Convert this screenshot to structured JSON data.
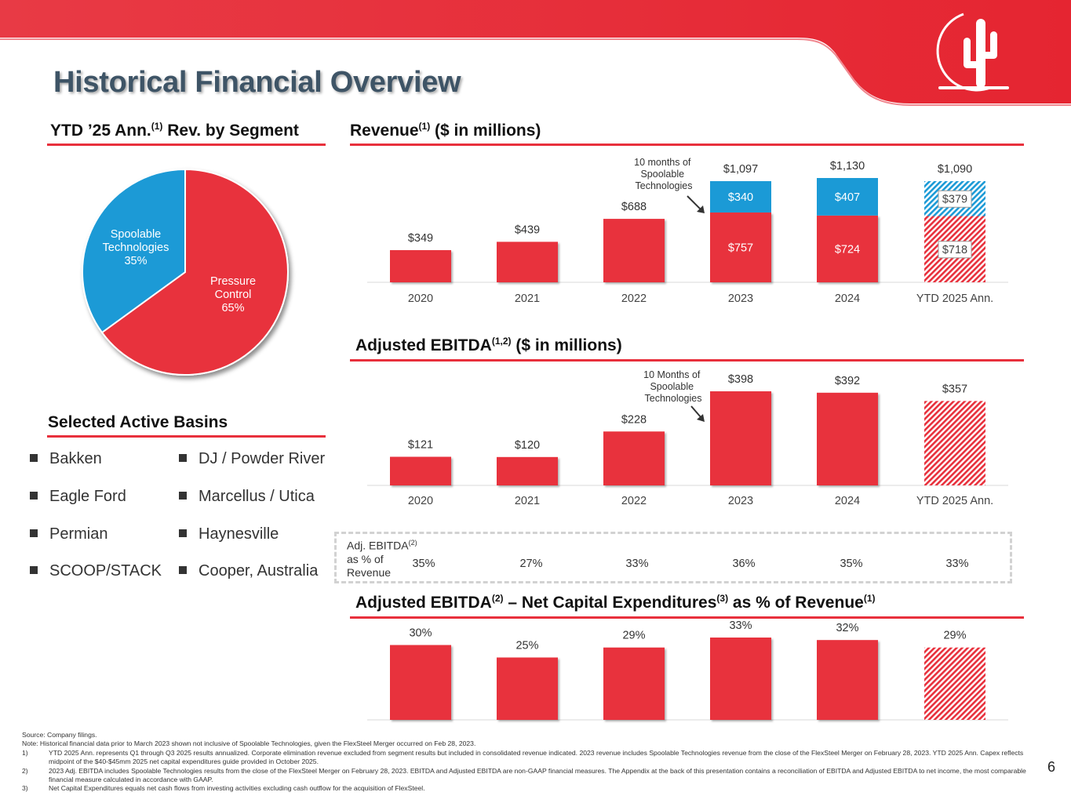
{
  "page": {
    "title": "Historical Financial Overview",
    "page_number": "6"
  },
  "pie_section": {
    "title": "YTD ’25 Ann.",
    "sup": "(1)",
    "title_rest": " Rev. by Segment"
  },
  "revenue_section": {
    "title": "Revenue",
    "sup": "(1)",
    "title_rest": " ($ in millions)",
    "note": [
      "10 months of",
      "Spoolable",
      "Technologies"
    ]
  },
  "ebitda_section": {
    "title": "Adjusted EBITDA",
    "sup": "(1,2)",
    "title_rest": " ($ in millions)",
    "note": [
      "10 Months of",
      "Spoolable",
      "Technologies"
    ]
  },
  "capex_section": {
    "title_a": "Adjusted EBITDA",
    "sup_a": "(2)",
    "title_b": " – Net Capital Expenditures",
    "sup_b": "(3)",
    "title_c": " as % of Revenue",
    "sup_c": "(1)"
  },
  "margin_row": {
    "label_1": "Adj. EBITDA",
    "label_sup": "(2)",
    "label_2": "as % of",
    "label_3": "Revenue"
  },
  "basins": {
    "title": "Selected Active Basins",
    "col1": [
      "Bakken",
      "Eagle Ford",
      "Permian",
      "SCOOP/STACK"
    ],
    "col2": [
      "DJ / Powder River",
      "Marcellus / Utica",
      "Haynesville",
      "Cooper, Australia"
    ]
  },
  "colors": {
    "red": "#e8303c",
    "blue": "#1b9ad6",
    "navy": "#3e5466"
  },
  "chart_data": [
    {
      "type": "pie",
      "title": "YTD ’25 Ann. Rev. by Segment",
      "slices": [
        {
          "name": "Pressure Control",
          "label": [
            "Pressure",
            "Control",
            "65%"
          ],
          "value": 65,
          "color": "#e8303c"
        },
        {
          "name": "Spoolable Technologies",
          "label": [
            "Spoolable",
            "Technologies",
            "35%"
          ],
          "value": 35,
          "color": "#1b9ad6"
        }
      ]
    },
    {
      "type": "bar",
      "stacked": true,
      "title": "Revenue ($ in millions)",
      "categories": [
        "2020",
        "2021",
        "2022",
        "2023",
        "2024",
        "YTD 2025 Ann."
      ],
      "series": [
        {
          "name": "Pressure Control",
          "values": [
            349,
            439,
            688,
            757,
            724,
            718
          ],
          "labels": [
            "",
            "",
            "",
            "$757",
            "$724",
            "$718"
          ]
        },
        {
          "name": "Spoolable Technologies",
          "values": [
            0,
            0,
            0,
            340,
            407,
            379
          ],
          "labels": [
            "",
            "",
            "",
            "$340",
            "$407",
            "$379"
          ]
        }
      ],
      "totals": [
        "$349",
        "$439",
        "$688",
        "$1,097",
        "$1,130",
        "$1,090"
      ],
      "hatched": [
        false,
        false,
        false,
        false,
        false,
        true
      ],
      "ylim": [
        0,
        1200
      ]
    },
    {
      "type": "bar",
      "title": "Adjusted EBITDA ($ in millions)",
      "categories": [
        "2020",
        "2021",
        "2022",
        "2023",
        "2024",
        "YTD 2025 Ann."
      ],
      "values": [
        121,
        120,
        228,
        398,
        392,
        357
      ],
      "labels": [
        "$121",
        "$120",
        "$228",
        "$398",
        "$392",
        "$357"
      ],
      "margins": [
        "35%",
        "27%",
        "33%",
        "36%",
        "35%",
        "33%"
      ],
      "hatched": [
        false,
        false,
        false,
        false,
        false,
        true
      ],
      "ylim": [
        0,
        420
      ]
    },
    {
      "type": "bar",
      "title": "Adjusted EBITDA – Net Capital Expenditures as % of Revenue",
      "categories": [
        "2020",
        "2021",
        "2022",
        "2023",
        "2024",
        "YTD 2025 Ann."
      ],
      "values": [
        30,
        25,
        29,
        33,
        32,
        29
      ],
      "labels": [
        "30%",
        "25%",
        "29%",
        "33%",
        "32%",
        "29%"
      ],
      "hatched": [
        false,
        false,
        false,
        false,
        false,
        true
      ],
      "ylim": [
        0,
        34
      ]
    }
  ],
  "footnotes": {
    "source": "Source: Company filings.",
    "note": "Note: Historical financial data prior to March 2023 shown not inclusive of Spoolable Technologies, given the FlexSteel Merger occurred on Feb 28, 2023.",
    "items": [
      {
        "num": "1)",
        "text": "YTD 2025 Ann. represents Q1 through Q3 2025 results annualized.  Corporate elimination revenue excluded from segment results but included in consolidated revenue indicated.  2023 revenue includes Spoolable Technologies revenue from the close of the FlexSteel Merger on February 28, 2023. YTD 2025 Ann. Capex reflects midpoint of the $40-$45mm 2025 net capital expenditures guide provided in October 2025."
      },
      {
        "num": "2)",
        "text": "2023 Adj. EBITDA includes Spoolable Technologies results from the close of the FlexSteel Merger on February 28, 2023.  EBITDA and Adjusted EBITDA are non-GAAP financial measures. The Appendix at the back of this presentation contains a reconciliation of EBITDA and Adjusted EBITDA to net income, the most comparable financial measure calculated in accordance with GAAP."
      },
      {
        "num": "3)",
        "text": "Net Capital Expenditures equals net cash flows from investing activities excluding cash outflow for the acquisition of FlexSteel."
      }
    ]
  }
}
